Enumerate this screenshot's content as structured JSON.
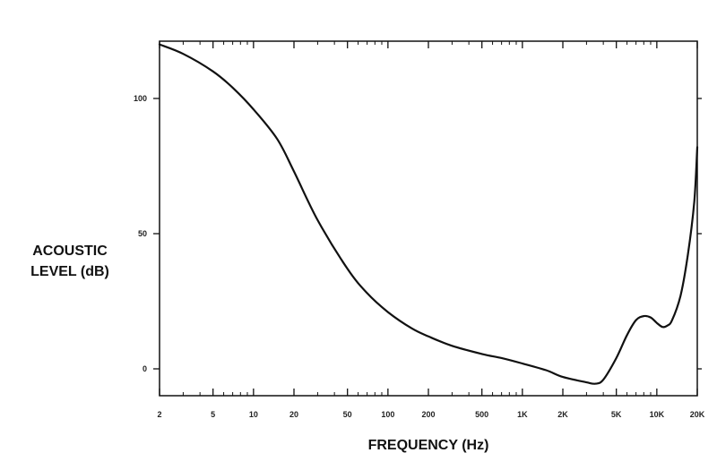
{
  "chart_data": {
    "type": "line",
    "title": "",
    "xlabel": "FREQUENCY (Hz)",
    "ylabel_lines": [
      "ACOUSTIC",
      "LEVEL (dB)"
    ],
    "x_scale": "log",
    "xlim": [
      2,
      20000
    ],
    "ylim": [
      -10,
      120
    ],
    "x_ticks": [
      {
        "value": 2,
        "label": "2"
      },
      {
        "value": 5,
        "label": "5"
      },
      {
        "value": 10,
        "label": "10"
      },
      {
        "value": 20,
        "label": "20"
      },
      {
        "value": 50,
        "label": "50"
      },
      {
        "value": 100,
        "label": "100"
      },
      {
        "value": 200,
        "label": "200"
      },
      {
        "value": 500,
        "label": "500"
      },
      {
        "value": 1000,
        "label": "1K"
      },
      {
        "value": 2000,
        "label": "2K"
      },
      {
        "value": 5000,
        "label": "5K"
      },
      {
        "value": 10000,
        "label": "10K"
      },
      {
        "value": 20000,
        "label": "20K"
      }
    ],
    "y_ticks": [
      {
        "value": 0,
        "label": "0"
      },
      {
        "value": 50,
        "label": "50"
      },
      {
        "value": 100,
        "label": "100"
      }
    ],
    "grid": false,
    "series": [
      {
        "x": [
          2,
          3,
          5,
          7,
          10,
          15,
          20,
          30,
          50,
          70,
          100,
          150,
          200,
          300,
          500,
          700,
          1000,
          1500,
          2000,
          3000,
          3500,
          4000,
          5000,
          6000,
          7000,
          8000,
          9000,
          10000,
          11000,
          12000,
          13000,
          15000,
          17000,
          19000,
          20000
        ],
        "y": [
          120,
          116.5,
          110,
          104,
          96,
          85,
          73,
          55,
          37,
          28,
          21,
          15,
          12,
          8.5,
          5.5,
          4,
          2,
          -0.5,
          -3,
          -5,
          -5.5,
          -4,
          4,
          12.5,
          18,
          19.5,
          19,
          17,
          15.5,
          16,
          18,
          27,
          42,
          62,
          82
        ]
      }
    ]
  }
}
